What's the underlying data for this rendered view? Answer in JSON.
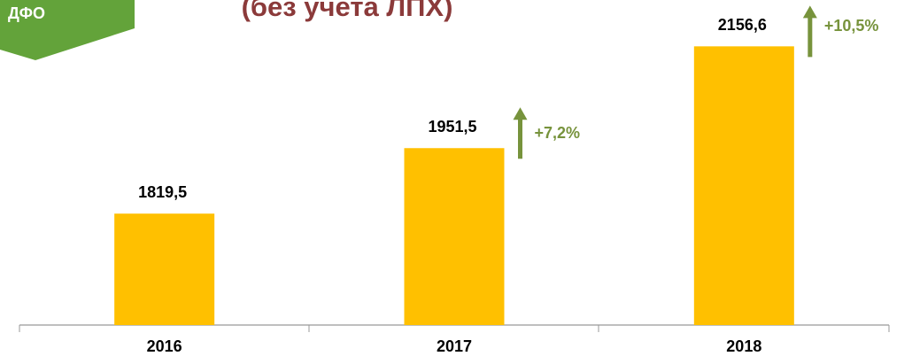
{
  "badge": "ДФО",
  "chart_data": {
    "type": "bar",
    "title": "(без учета ЛПХ)",
    "categories": [
      "2016",
      "2017",
      "2018"
    ],
    "values": [
      1819.5,
      1951.5,
      2156.6
    ],
    "value_labels": [
      "1819,5",
      "1951,5",
      "2156,6"
    ],
    "annotations": [
      "+7,2%",
      "+10,5%"
    ],
    "color": "#ffc000",
    "ylim": [
      1595,
      2250
    ]
  }
}
